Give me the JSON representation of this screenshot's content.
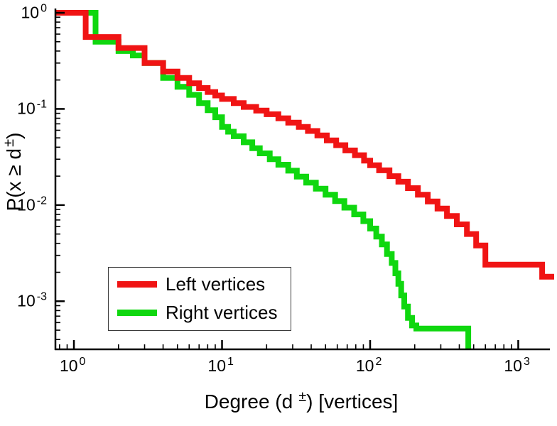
{
  "chart_data": {
    "type": "line",
    "title": "",
    "x_scale": "log",
    "y_scale": "log",
    "xlim": [
      0.75,
      1600
    ],
    "ylim": [
      0.00031622,
      1
    ],
    "xlabel": {
      "pre": "Degree (d",
      "sup": "±",
      "post": ") [vertices]"
    },
    "ylabel": {
      "pre": "P(x ≥ d",
      "sup": "±",
      "post": ")"
    },
    "x_major_tick_exponents": [
      0,
      1,
      2,
      3
    ],
    "y_major_tick_exponents": [
      0,
      -1,
      -2,
      -3
    ],
    "tick_label_base": "10",
    "axis_color": "#000000",
    "background": "#ffffff",
    "legend": {
      "position": "lower-left"
    },
    "series": [
      {
        "name": "Left vertices",
        "color": "#f01414",
        "line_width": 8,
        "step": "post",
        "extend_to_xmax": true,
        "points": [
          [
            0.75,
            1.0
          ],
          [
            1.2,
            0.56
          ],
          [
            2,
            0.43
          ],
          [
            3,
            0.3
          ],
          [
            4,
            0.245
          ],
          [
            5,
            0.21
          ],
          [
            6,
            0.185
          ],
          [
            7,
            0.165
          ],
          [
            8,
            0.15
          ],
          [
            9,
            0.138
          ],
          [
            10,
            0.127
          ],
          [
            12,
            0.115
          ],
          [
            14,
            0.105
          ],
          [
            17,
            0.096
          ],
          [
            20,
            0.088
          ],
          [
            24,
            0.08
          ],
          [
            28,
            0.072
          ],
          [
            33,
            0.065
          ],
          [
            38,
            0.059
          ],
          [
            44,
            0.053
          ],
          [
            51,
            0.047
          ],
          [
            59,
            0.042
          ],
          [
            68,
            0.037
          ],
          [
            79,
            0.033
          ],
          [
            91,
            0.029
          ],
          [
            100,
            0.026
          ],
          [
            115,
            0.023
          ],
          [
            135,
            0.02
          ],
          [
            155,
            0.0175
          ],
          [
            180,
            0.015
          ],
          [
            210,
            0.0128
          ],
          [
            245,
            0.0109
          ],
          [
            285,
            0.0092
          ],
          [
            330,
            0.0077
          ],
          [
            385,
            0.0063
          ],
          [
            450,
            0.005
          ],
          [
            520,
            0.0038
          ],
          [
            600,
            0.0024
          ],
          [
            1450,
            0.0018
          ]
        ]
      },
      {
        "name": "Right vertices",
        "color": "#0fd70f",
        "line_width": 8,
        "step": "post",
        "extend_to_xmax": false,
        "points": [
          [
            0.75,
            1.0
          ],
          [
            1.4,
            0.5
          ],
          [
            2,
            0.4
          ],
          [
            2.5,
            0.36
          ],
          [
            3,
            0.3
          ],
          [
            4,
            0.21
          ],
          [
            5,
            0.17
          ],
          [
            6,
            0.14
          ],
          [
            7,
            0.115
          ],
          [
            8,
            0.097
          ],
          [
            9,
            0.082
          ],
          [
            10,
            0.065
          ],
          [
            11,
            0.058
          ],
          [
            12,
            0.052
          ],
          [
            14,
            0.045
          ],
          [
            16,
            0.039
          ],
          [
            18,
            0.0345
          ],
          [
            21,
            0.03
          ],
          [
            24,
            0.0263
          ],
          [
            28,
            0.0228
          ],
          [
            32,
            0.0198
          ],
          [
            37,
            0.0171
          ],
          [
            43,
            0.0148
          ],
          [
            50,
            0.0128
          ],
          [
            58,
            0.011
          ],
          [
            67,
            0.0094
          ],
          [
            78,
            0.008
          ],
          [
            90,
            0.0068
          ],
          [
            100,
            0.0057
          ],
          [
            110,
            0.0047
          ],
          [
            120,
            0.0039
          ],
          [
            130,
            0.0031
          ],
          [
            140,
            0.0025
          ],
          [
            148,
            0.00195
          ],
          [
            155,
            0.00152
          ],
          [
            162,
            0.00115
          ],
          [
            170,
            0.00088
          ],
          [
            180,
            0.00067
          ],
          [
            192,
            0.00056
          ],
          [
            205,
            0.00052
          ],
          [
            460,
            0.0002
          ]
        ]
      }
    ]
  }
}
